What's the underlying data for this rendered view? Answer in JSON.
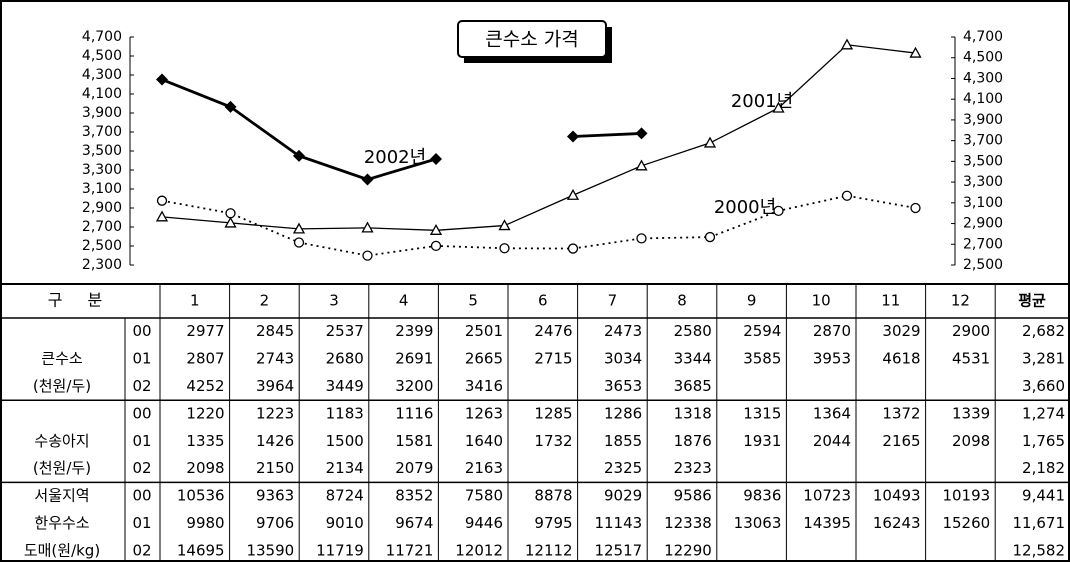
{
  "chart_data": {
    "type": "line",
    "title": "큰수소 가격",
    "categories": [
      "1",
      "2",
      "3",
      "4",
      "5",
      "6",
      "7",
      "8",
      "9",
      "10",
      "11",
      "12"
    ],
    "ylim": [
      2300,
      4700
    ],
    "yticks": [
      {
        "value": 2300,
        "label": "2,300"
      },
      {
        "value": 2500,
        "label": "2,500"
      },
      {
        "value": 2700,
        "label": "2,700"
      },
      {
        "value": 2900,
        "label": "2,900"
      },
      {
        "value": 3100,
        "label": "3,100"
      },
      {
        "value": 3300,
        "label": "3,300"
      },
      {
        "value": 3500,
        "label": "3,500"
      },
      {
        "value": 3700,
        "label": "3,700"
      },
      {
        "value": 3900,
        "label": "3,900"
      },
      {
        "value": 4100,
        "label": "4,100"
      },
      {
        "value": 4300,
        "label": "4,300"
      },
      {
        "value": 4500,
        "label": "4,500"
      },
      {
        "value": 4700,
        "label": "4,700"
      }
    ],
    "y2lim": [
      2500,
      4700
    ],
    "y2ticks": [
      {
        "value": 2500,
        "label": "2,500"
      },
      {
        "value": 2700,
        "label": "2,700"
      },
      {
        "value": 2900,
        "label": "2,900"
      },
      {
        "value": 3100,
        "label": "3,100"
      },
      {
        "value": 3300,
        "label": "3,300"
      },
      {
        "value": 3500,
        "label": "3,500"
      },
      {
        "value": 3700,
        "label": "3,700"
      },
      {
        "value": 3900,
        "label": "3,900"
      },
      {
        "value": 4100,
        "label": "4,100"
      },
      {
        "value": 4300,
        "label": "4,300"
      },
      {
        "value": 4500,
        "label": "4,500"
      },
      {
        "value": 4700,
        "label": "4,700"
      }
    ],
    "series": [
      {
        "name": "2000년",
        "code": "00",
        "color": "#000000",
        "line": "dotted",
        "marker": "circle",
        "values": [
          2977,
          2845,
          2537,
          2399,
          2501,
          2476,
          2473,
          2580,
          2594,
          2870,
          3029,
          2900
        ],
        "average": "2,682"
      },
      {
        "name": "2001년",
        "code": "01",
        "color": "#000000",
        "line": "thin",
        "marker": "triangle",
        "values": [
          2807,
          2743,
          2680,
          2691,
          2665,
          2715,
          3034,
          3344,
          3585,
          3953,
          4618,
          4531
        ],
        "average": "3,281"
      },
      {
        "name": "2002년",
        "code": "02",
        "color": "#000000",
        "line": "bold",
        "marker": "diamond",
        "values": [
          4252,
          3964,
          3449,
          3200,
          3416,
          null,
          3653,
          3685,
          null,
          null,
          null,
          null
        ],
        "average": "3,660"
      }
    ]
  },
  "table": {
    "header_label": "구 분",
    "average_label": "평균",
    "sections": [
      {
        "labels": [
          "큰수소",
          "(천원/두)"
        ]
      },
      {
        "labels": [
          "수송아지",
          "(천원/두)"
        ],
        "rows": [
          {
            "code": "00",
            "values": [
              1220,
              1223,
              1183,
              1116,
              1263,
              1285,
              1286,
              1318,
              1315,
              1364,
              1372,
              1339
            ],
            "average": "1,274"
          },
          {
            "code": "01",
            "values": [
              1335,
              1426,
              1500,
              1581,
              1640,
              1732,
              1855,
              1876,
              1931,
              2044,
              2165,
              2098
            ],
            "average": "1,765"
          },
          {
            "code": "02",
            "values": [
              2098,
              2150,
              2134,
              2079,
              2163,
              null,
              2325,
              2323,
              null,
              null,
              null,
              null
            ],
            "average": "2,182"
          }
        ]
      },
      {
        "labels": [
          "서울지역",
          "한우수소",
          "도매(원/kg)"
        ],
        "rows": [
          {
            "code": "00",
            "values": [
              10536,
              9363,
              8724,
              8352,
              7580,
              8878,
              9029,
              9586,
              9836,
              10723,
              10493,
              10193
            ],
            "average": "9,441"
          },
          {
            "code": "01",
            "values": [
              9980,
              9706,
              9010,
              9674,
              9446,
              9795,
              11143,
              12338,
              13063,
              14395,
              16243,
              15260
            ],
            "average": "11,671"
          },
          {
            "code": "02",
            "values": [
              14695,
              13590,
              11719,
              11721,
              12012,
              12112,
              12517,
              12290,
              null,
              null,
              null,
              null
            ],
            "average": "12,582"
          }
        ]
      }
    ]
  }
}
